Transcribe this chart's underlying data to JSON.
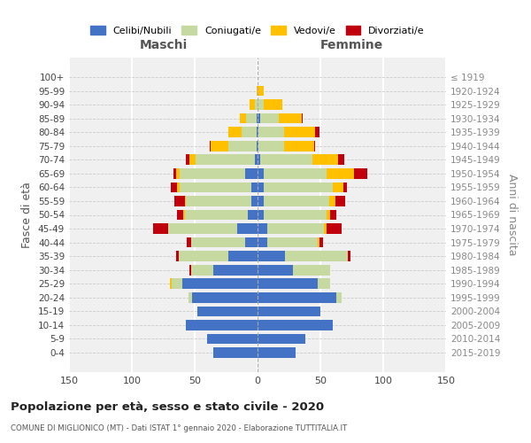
{
  "age_groups": [
    "0-4",
    "5-9",
    "10-14",
    "15-19",
    "20-24",
    "25-29",
    "30-34",
    "35-39",
    "40-44",
    "45-49",
    "50-54",
    "55-59",
    "60-64",
    "65-69",
    "70-74",
    "75-79",
    "80-84",
    "85-89",
    "90-94",
    "95-99",
    "100+"
  ],
  "birth_years": [
    "2015-2019",
    "2010-2014",
    "2005-2009",
    "2000-2004",
    "1995-1999",
    "1990-1994",
    "1985-1989",
    "1980-1984",
    "1975-1979",
    "1970-1974",
    "1965-1969",
    "1960-1964",
    "1955-1959",
    "1950-1954",
    "1945-1949",
    "1940-1944",
    "1935-1939",
    "1930-1934",
    "1925-1929",
    "1920-1924",
    "≤ 1919"
  ],
  "maschi_celibi": [
    35,
    40,
    57,
    48,
    52,
    60,
    35,
    23,
    10,
    16,
    8,
    5,
    5,
    10,
    2,
    1,
    1,
    1,
    0,
    0,
    0
  ],
  "maschi_coniugati": [
    0,
    0,
    0,
    0,
    3,
    8,
    18,
    40,
    43,
    55,
    50,
    52,
    57,
    52,
    47,
    22,
    12,
    8,
    2,
    0,
    0
  ],
  "maschi_vedovi": [
    0,
    0,
    0,
    0,
    0,
    2,
    0,
    0,
    0,
    0,
    1,
    1,
    2,
    3,
    5,
    14,
    10,
    5,
    4,
    1,
    0
  ],
  "maschi_divorziati": [
    0,
    0,
    0,
    0,
    0,
    0,
    1,
    2,
    3,
    12,
    5,
    8,
    5,
    2,
    3,
    1,
    0,
    0,
    0,
    0,
    0
  ],
  "femmine_nubili": [
    30,
    38,
    60,
    50,
    63,
    48,
    28,
    22,
    8,
    8,
    5,
    5,
    5,
    5,
    2,
    1,
    1,
    2,
    0,
    0,
    0
  ],
  "femmine_coniugate": [
    0,
    0,
    0,
    0,
    4,
    10,
    30,
    50,
    40,
    45,
    50,
    52,
    55,
    50,
    42,
    20,
    20,
    15,
    5,
    0,
    0
  ],
  "femmine_vedove": [
    0,
    0,
    0,
    0,
    0,
    0,
    0,
    0,
    1,
    2,
    3,
    5,
    8,
    22,
    20,
    24,
    25,
    18,
    15,
    5,
    0
  ],
  "femmine_divorziate": [
    0,
    0,
    0,
    0,
    0,
    0,
    0,
    2,
    3,
    12,
    5,
    8,
    3,
    10,
    5,
    1,
    3,
    1,
    0,
    0,
    0
  ],
  "color_celibi": "#4472c4",
  "color_coniugati": "#c5d9a0",
  "color_vedovi": "#ffc000",
  "color_divorziati": "#c0000c",
  "xlim": 150,
  "bg_color": "#f0f0f0",
  "title": "Popolazione per età, sesso e stato civile - 2020",
  "subtitle": "COMUNE DI MIGLIONICO (MT) - Dati ISTAT 1° gennaio 2020 - Elaborazione TUTTITALIA.IT",
  "legend_labels": [
    "Celibi/Nubili",
    "Coniugati/e",
    "Vedovi/e",
    "Divorziati/e"
  ],
  "label_maschi": "Maschi",
  "label_femmine": "Femmine",
  "ylabel_left": "Fasce di età",
  "ylabel_right": "Anni di nascita"
}
